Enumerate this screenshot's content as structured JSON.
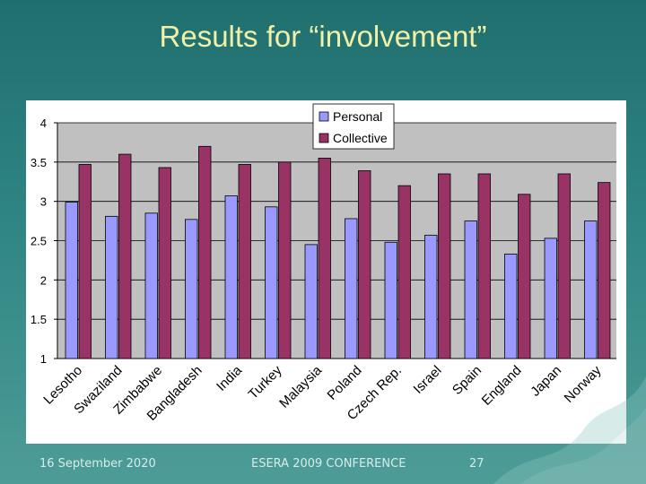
{
  "slide": {
    "title": "Results for “involvement”",
    "footer_date": "16 September 2020",
    "footer_conference": "ESERA 2009 CONFERENCE",
    "page_number": "27"
  },
  "colors": {
    "personal": "#9999ff",
    "collective": "#993366",
    "plot_bg": "#c0c0c0"
  },
  "chart_data": {
    "type": "bar",
    "title": "",
    "xlabel": "",
    "ylabel": "",
    "ylim": [
      1,
      4
    ],
    "yticks": [
      1,
      1.5,
      2,
      2.5,
      3,
      3.5,
      4
    ],
    "ytick_labels": [
      "1",
      "1.5",
      "2",
      "2.5",
      "3",
      "3.5",
      "4"
    ],
    "categories": [
      "Lesotho",
      "Swaziland",
      "Zimbabwe",
      "Bangladesh",
      "India",
      "Turkey",
      "Malaysia",
      "Poland",
      "Czech Rep.",
      "Israel",
      "Spain",
      "England",
      "Japan",
      "Norway"
    ],
    "series": [
      {
        "name": "Personal",
        "values": [
          2.99,
          2.81,
          2.85,
          2.77,
          3.07,
          2.93,
          2.45,
          2.78,
          2.48,
          2.57,
          2.75,
          2.33,
          2.53,
          2.75
        ]
      },
      {
        "name": "Collective",
        "values": [
          3.47,
          3.6,
          3.43,
          3.7,
          3.47,
          3.5,
          3.55,
          3.39,
          3.2,
          3.35,
          3.35,
          3.09,
          3.35,
          3.24
        ]
      }
    ],
    "legend": "top"
  }
}
